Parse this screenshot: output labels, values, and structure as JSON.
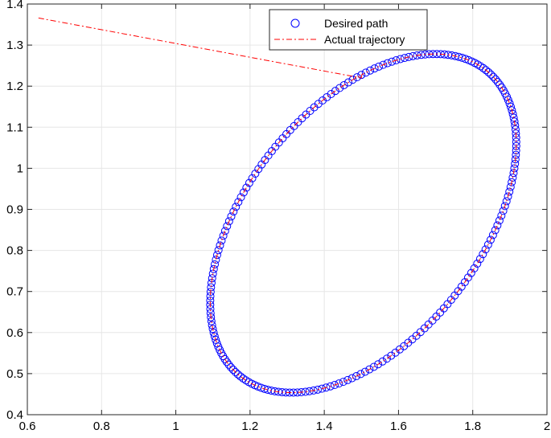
{
  "chart_data": {
    "type": "line",
    "title": "",
    "xlabel": "",
    "ylabel": "",
    "xlim": [
      0.6,
      2.0
    ],
    "ylim": [
      0.4,
      1.4
    ],
    "xticks": [
      0.6,
      0.8,
      1.0,
      1.2,
      1.4,
      1.6,
      1.8,
      2.0
    ],
    "yticks": [
      0.4,
      0.5,
      0.6,
      0.7,
      0.8,
      0.9,
      1.0,
      1.1,
      1.2,
      1.3,
      1.4
    ],
    "xtick_labels": [
      "0.6",
      "0.8",
      "1",
      "1.2",
      "1.4",
      "1.6",
      "1.8",
      "2"
    ],
    "ytick_labels": [
      "0.4",
      "0.5",
      "0.6",
      "0.7",
      "0.8",
      "0.9",
      "1",
      "1.1",
      "1.2",
      "1.3",
      "1.4"
    ],
    "grid": true,
    "legend_position": "top-right",
    "series": [
      {
        "name": "Desired path",
        "style": "circle-markers",
        "color": "#0000ff",
        "shape": "ellipse",
        "center": [
          1.505,
          0.866
        ],
        "semi_axis_x": 0.4,
        "semi_axis_y": 0.4,
        "semi_axis_diag": 0.1,
        "points": 220
      },
      {
        "name": "Actual trajectory",
        "style": "dash-dot",
        "color": "#ff0000",
        "start": [
          0.63,
          1.366
        ],
        "joins_path_at": [
          1.5,
          1.22
        ]
      }
    ]
  }
}
